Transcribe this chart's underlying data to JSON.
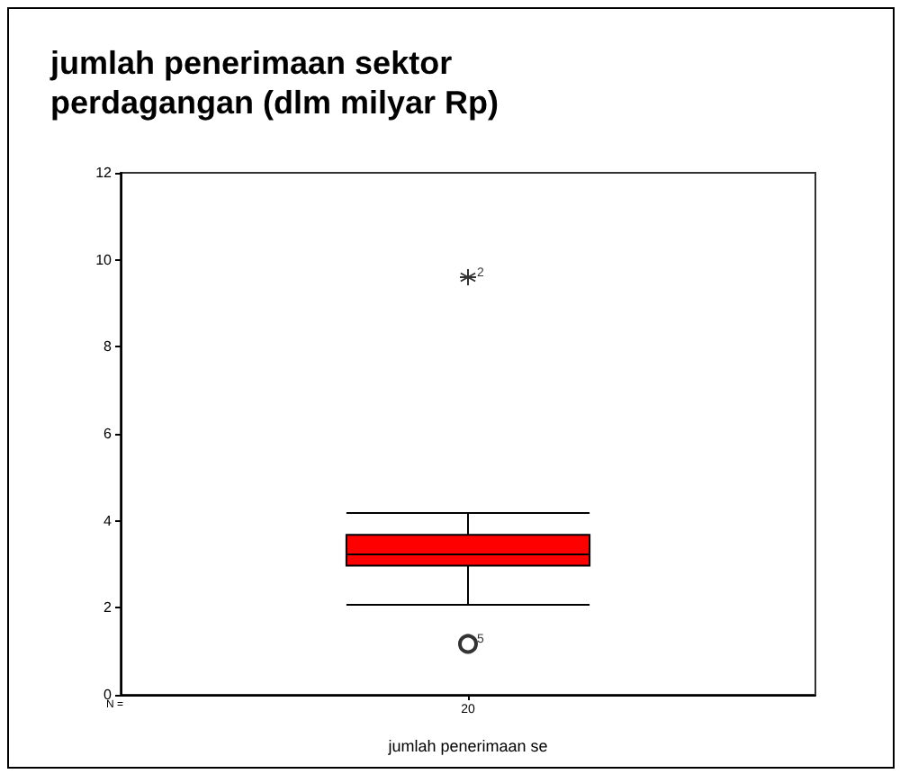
{
  "chart_data": {
    "type": "box",
    "title": "jumlah penerimaan sektor perdagangan (dlm milyar Rp)",
    "xlabel": "jumlah penerimaan se",
    "categories": [
      "20"
    ],
    "boxes": [
      {
        "low": 2.07,
        "q1": 2.97,
        "median": 3.23,
        "q3": 3.68,
        "high": 4.18,
        "outliers": [
          9.6,
          1.17
        ]
      }
    ],
    "color": "#ff0000",
    "ylim": [
      0,
      12
    ],
    "yticks": [
      0,
      2,
      4,
      6,
      8,
      10,
      12
    ],
    "grid": false,
    "annotations": [
      "N =",
      "2",
      "5"
    ]
  }
}
